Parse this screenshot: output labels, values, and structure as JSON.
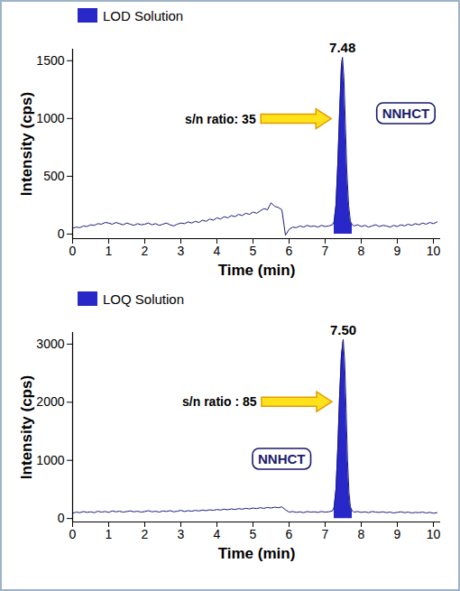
{
  "chart_data": [
    {
      "type": "line",
      "x_label": "Time (min)",
      "y_label": "Intensity (cps)",
      "legend": "top-left",
      "xlim": [
        0,
        10.2
      ],
      "xticks": [
        0,
        1,
        2,
        3,
        4,
        5,
        6,
        7,
        8,
        9,
        10
      ],
      "ylim": [
        -40,
        1600
      ],
      "yticks": [
        0,
        500,
        1000,
        1500
      ],
      "x": [
        0,
        0.1,
        0.2,
        0.3,
        0.4,
        0.5,
        0.6,
        0.7,
        0.8,
        0.9,
        1,
        1.1,
        1.2,
        1.3,
        1.4,
        1.5,
        1.6,
        1.7,
        1.8,
        1.9,
        2,
        2.1,
        2.2,
        2.3,
        2.4,
        2.5,
        2.6,
        2.7,
        2.8,
        2.9,
        3,
        3.1,
        3.2,
        3.3,
        3.4,
        3.5,
        3.6,
        3.7,
        3.8,
        3.9,
        4,
        4.1,
        4.2,
        4.3,
        4.4,
        4.5,
        4.6,
        4.7,
        4.8,
        4.9,
        5,
        5.1,
        5.2,
        5.3,
        5.4,
        5.5,
        5.6,
        5.7,
        5.8,
        5.9,
        6,
        6.1,
        6.2,
        6.3,
        6.4,
        6.5,
        6.6,
        6.7,
        6.8,
        6.9,
        7,
        7.1,
        7.2,
        7.25,
        7.3,
        7.35,
        7.4,
        7.45,
        7.48,
        7.52,
        7.56,
        7.6,
        7.65,
        7.7,
        7.75,
        7.8,
        7.9,
        8,
        8.1,
        8.2,
        8.3,
        8.4,
        8.5,
        8.6,
        8.7,
        8.8,
        8.9,
        9,
        9.1,
        9.2,
        9.3,
        9.4,
        9.5,
        9.6,
        9.7,
        9.8,
        9.9,
        10,
        10.1
      ],
      "series": [
        {
          "name": "LOD Solution",
          "color": "#2828c8",
          "values": [
            50,
            60,
            55,
            70,
            65,
            80,
            75,
            90,
            85,
            100,
            95,
            85,
            100,
            90,
            80,
            95,
            85,
            75,
            90,
            80,
            85,
            95,
            80,
            90,
            75,
            85,
            95,
            80,
            70,
            85,
            95,
            90,
            105,
            95,
            110,
            100,
            120,
            110,
            130,
            120,
            140,
            130,
            150,
            140,
            160,
            150,
            170,
            160,
            180,
            170,
            190,
            180,
            200,
            220,
            210,
            270,
            240,
            230,
            210,
            -10,
            40,
            60,
            55,
            70,
            60,
            75,
            65,
            70,
            60,
            75,
            65,
            70,
            80,
            110,
            250,
            600,
            1050,
            1450,
            1530,
            1350,
            950,
            550,
            250,
            110,
            80,
            70,
            80,
            65,
            75,
            60,
            70,
            80,
            65,
            75,
            70,
            60,
            75,
            65,
            80,
            70,
            85,
            75,
            90,
            80,
            95,
            85,
            100,
            90,
            105
          ]
        }
      ],
      "peak": {
        "value": 7.48,
        "label": "7.48"
      },
      "peak_window": [
        7.25,
        7.75
      ],
      "sn_label": "s/n ratio: 35",
      "compound_label": "NNHCT"
    },
    {
      "type": "line",
      "x_label": "Time (min)",
      "y_label": "Intensity (cps)",
      "legend": "top-left",
      "xlim": [
        0,
        10.2
      ],
      "xticks": [
        0,
        1,
        2,
        3,
        4,
        5,
        6,
        7,
        8,
        9,
        10
      ],
      "ylim": [
        -60,
        3200
      ],
      "yticks": [
        0,
        1000,
        2000,
        3000
      ],
      "x": [
        0,
        0.1,
        0.2,
        0.3,
        0.4,
        0.5,
        0.6,
        0.7,
        0.8,
        0.9,
        1,
        1.1,
        1.2,
        1.3,
        1.4,
        1.5,
        1.6,
        1.7,
        1.8,
        1.9,
        2,
        2.1,
        2.2,
        2.3,
        2.4,
        2.5,
        2.6,
        2.7,
        2.8,
        2.9,
        3,
        3.1,
        3.2,
        3.3,
        3.4,
        3.5,
        3.6,
        3.7,
        3.8,
        3.9,
        4,
        4.1,
        4.2,
        4.3,
        4.4,
        4.5,
        4.6,
        4.7,
        4.8,
        4.9,
        5,
        5.1,
        5.2,
        5.3,
        5.4,
        5.5,
        5.6,
        5.7,
        5.8,
        5.9,
        6,
        6.1,
        6.2,
        6.3,
        6.4,
        6.5,
        6.6,
        6.7,
        6.8,
        6.9,
        7,
        7.1,
        7.2,
        7.25,
        7.3,
        7.35,
        7.4,
        7.45,
        7.5,
        7.54,
        7.58,
        7.62,
        7.66,
        7.7,
        7.75,
        7.8,
        7.9,
        8,
        8.1,
        8.2,
        8.3,
        8.4,
        8.5,
        8.6,
        8.7,
        8.8,
        8.9,
        9,
        9.1,
        9.2,
        9.3,
        9.4,
        9.5,
        9.6,
        9.7,
        9.8,
        9.9,
        10,
        10.1
      ],
      "series": [
        {
          "name": "LOQ Solution",
          "color": "#2828c8",
          "values": [
            90,
            110,
            100,
            120,
            105,
            115,
            100,
            125,
            110,
            120,
            105,
            130,
            115,
            125,
            110,
            120,
            130,
            115,
            125,
            110,
            120,
            135,
            115,
            125,
            110,
            130,
            120,
            135,
            115,
            125,
            140,
            120,
            135,
            125,
            140,
            130,
            145,
            135,
            150,
            140,
            155,
            145,
            160,
            150,
            165,
            155,
            170,
            160,
            175,
            165,
            180,
            170,
            185,
            175,
            190,
            180,
            195,
            185,
            200,
            150,
            110,
            120,
            105,
            115,
            100,
            120,
            110,
            115,
            105,
            120,
            110,
            115,
            130,
            200,
            500,
            1200,
            2100,
            2800,
            3080,
            2700,
            1900,
            1000,
            450,
            200,
            130,
            110,
            120,
            105,
            115,
            100,
            120,
            110,
            105,
            115,
            100,
            110,
            95,
            105,
            115,
            100,
            110,
            95,
            105,
            100,
            110,
            95,
            105,
            90,
            100
          ]
        }
      ],
      "peak": {
        "value": 7.5,
        "label": "7.50"
      },
      "peak_window": [
        7.25,
        7.75
      ],
      "sn_label": "s/n ratio : 85",
      "compound_label": "NNHCT"
    }
  ]
}
